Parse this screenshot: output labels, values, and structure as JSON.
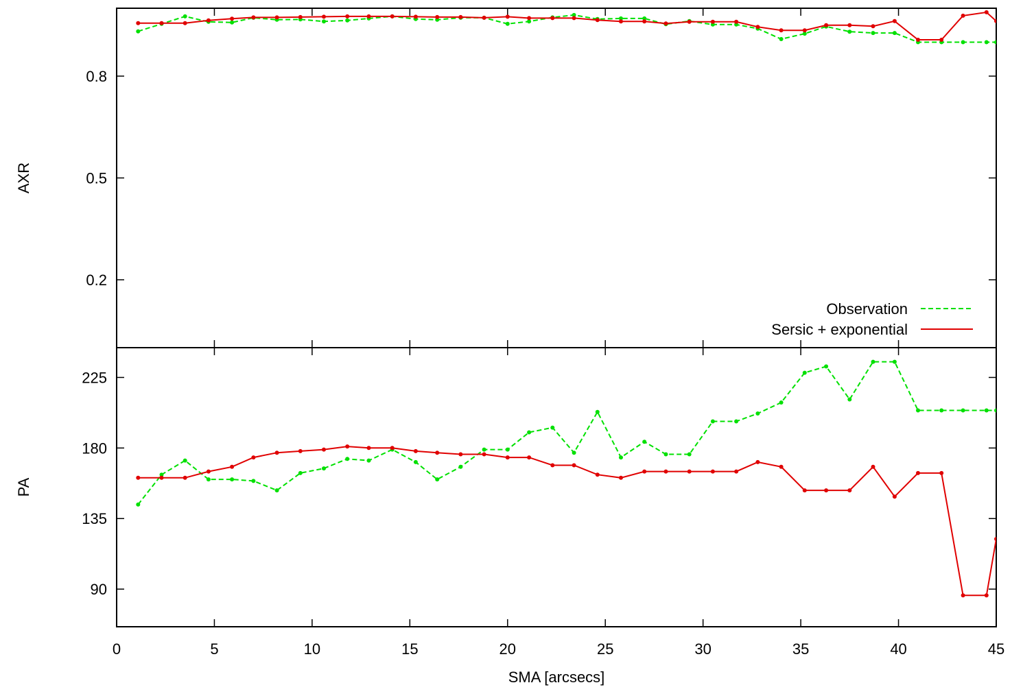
{
  "chart_data": {
    "type": "line",
    "xlabel": "SMA [arcsecs]",
    "xlim": [
      0,
      45
    ],
    "xticks": [
      0,
      5,
      10,
      15,
      20,
      25,
      30,
      35,
      40,
      45
    ],
    "legend_position": "bottom-right of top panel",
    "grid": false,
    "panels": [
      {
        "id": "axr",
        "ylabel": "AXR",
        "ylim": [
          0.0,
          1.0
        ],
        "yticks": [
          0.2,
          0.5,
          0.8
        ],
        "ytick_labels": [
          "0.2",
          "0.5",
          "0.8"
        ],
        "series": [
          {
            "name": "Observation",
            "color": "#00e000",
            "style": "dashed",
            "x": [
              1.1,
              2.3,
              3.5,
              4.7,
              5.9,
              7.0,
              8.2,
              9.4,
              10.6,
              11.8,
              12.9,
              14.1,
              15.3,
              16.4,
              17.6,
              18.8,
              20.0,
              21.1,
              22.3,
              23.4,
              24.6,
              25.8,
              27.0,
              28.1,
              29.3,
              30.5,
              31.7,
              32.8,
              34.0,
              35.2,
              36.3,
              37.5,
              38.7,
              39.8,
              41.0,
              42.2,
              43.3,
              44.5,
              45.0
            ],
            "y": [
              0.932,
              0.954,
              0.976,
              0.96,
              0.958,
              0.972,
              0.966,
              0.967,
              0.961,
              0.964,
              0.97,
              0.976,
              0.968,
              0.966,
              0.972,
              0.972,
              0.954,
              0.961,
              0.973,
              0.98,
              0.968,
              0.97,
              0.97,
              0.953,
              0.962,
              0.952,
              0.952,
              0.94,
              0.909,
              0.925,
              0.946,
              0.931,
              0.927,
              0.927,
              0.9,
              0.9,
              0.9,
              0.9,
              0.9
            ]
          },
          {
            "name": "Sersic + exponential",
            "color": "#e00000",
            "style": "solid",
            "x": [
              1.1,
              2.3,
              3.5,
              4.7,
              5.9,
              7.0,
              8.2,
              9.4,
              10.6,
              11.8,
              12.9,
              14.1,
              15.3,
              16.4,
              17.6,
              18.8,
              20.0,
              21.1,
              22.3,
              23.4,
              24.6,
              25.8,
              27.0,
              28.1,
              29.3,
              30.5,
              31.7,
              32.8,
              34.0,
              35.2,
              36.3,
              37.5,
              38.7,
              39.8,
              41.0,
              42.2,
              43.3,
              44.5,
              45.0
            ],
            "y": [
              0.956,
              0.956,
              0.956,
              0.964,
              0.969,
              0.973,
              0.973,
              0.974,
              0.975,
              0.976,
              0.976,
              0.976,
              0.975,
              0.974,
              0.974,
              0.972,
              0.975,
              0.971,
              0.971,
              0.971,
              0.965,
              0.961,
              0.961,
              0.955,
              0.96,
              0.96,
              0.96,
              0.945,
              0.935,
              0.935,
              0.95,
              0.95,
              0.947,
              0.962,
              0.907,
              0.907,
              0.978,
              0.988,
              0.962
            ]
          }
        ]
      },
      {
        "id": "pa",
        "ylabel": "PA",
        "ylim": [
          66,
          244
        ],
        "yticks": [
          90,
          135,
          180,
          225
        ],
        "ytick_labels": [
          "90",
          "135",
          "180",
          "225"
        ],
        "series": [
          {
            "name": "Observation",
            "color": "#00e000",
            "style": "dashed",
            "x": [
              1.1,
              2.3,
              3.5,
              4.7,
              5.9,
              7.0,
              8.2,
              9.4,
              10.6,
              11.8,
              12.9,
              14.1,
              15.3,
              16.4,
              17.6,
              18.8,
              20.0,
              21.1,
              22.3,
              23.4,
              24.6,
              25.8,
              27.0,
              28.1,
              29.3,
              30.5,
              31.7,
              32.8,
              34.0,
              35.2,
              36.3,
              37.5,
              38.7,
              39.8,
              41.0,
              42.2,
              43.3,
              44.5,
              45.0
            ],
            "y": [
              144,
              163,
              172,
              160,
              160,
              159,
              153,
              164,
              167,
              173,
              172,
              179,
              171,
              160,
              168,
              179,
              179,
              190,
              193,
              177,
              203,
              174,
              184,
              176,
              176,
              197,
              197,
              202,
              209,
              228,
              232,
              211,
              235,
              235,
              204,
              204,
              204,
              204,
              204
            ]
          },
          {
            "name": "Sersic + exponential",
            "color": "#e00000",
            "style": "solid",
            "x": [
              1.1,
              2.3,
              3.5,
              4.7,
              5.9,
              7.0,
              8.2,
              9.4,
              10.6,
              11.8,
              12.9,
              14.1,
              15.3,
              16.4,
              17.6,
              18.8,
              20.0,
              21.1,
              22.3,
              23.4,
              24.6,
              25.8,
              27.0,
              28.1,
              29.3,
              30.5,
              31.7,
              32.8,
              34.0,
              35.2,
              36.3,
              37.5,
              38.7,
              39.8,
              41.0,
              42.2,
              43.3,
              44.5,
              45.0
            ],
            "y": [
              161,
              161,
              161,
              165,
              168,
              174,
              177,
              178,
              179,
              181,
              180,
              180,
              178,
              177,
              176,
              176,
              174,
              174,
              169,
              169,
              163,
              161,
              165,
              165,
              165,
              165,
              165,
              171,
              168,
              153,
              153,
              153,
              168,
              149,
              164,
              164,
              86,
              86,
              122
            ]
          }
        ]
      }
    ]
  }
}
